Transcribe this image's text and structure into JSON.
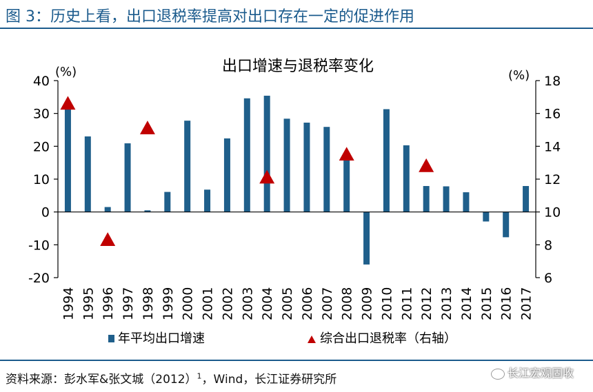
{
  "figure_title": "图 3：历史上看，出口退税率提高对出口存在一定的促进作用",
  "source_label": "资料来源：彭水军&张文城（2012）",
  "source_sup": "1",
  "source_rest": "，Wind，长江证券研究所",
  "watermark": "长江宏观固收",
  "colors": {
    "bar": "#1f5f8b",
    "marker": "#c00000",
    "title": "#1a5a8c"
  },
  "chart_data": {
    "type": "bar+scatter",
    "title": "出口增速与退税率变化",
    "left_unit": "(%)",
    "right_unit": "(%)",
    "categories": [
      "1994",
      "1995",
      "1996",
      "1997",
      "1998",
      "1999",
      "2000",
      "2001",
      "2002",
      "2003",
      "2004",
      "2005",
      "2006",
      "2007",
      "2008",
      "2009",
      "2010",
      "2011",
      "2012",
      "2013",
      "2014",
      "2015",
      "2016",
      "2017"
    ],
    "y_left_lim": [
      -20,
      40
    ],
    "y_left_ticks": [
      "40",
      "30",
      "20",
      "10",
      "0",
      "-10",
      "-20"
    ],
    "y_right_lim": [
      6,
      18
    ],
    "y_right_ticks": [
      "18",
      "16",
      "14",
      "12",
      "10",
      "8",
      "6"
    ],
    "series": [
      {
        "name": "年平均出口增速",
        "kind": "bar",
        "axis": "left",
        "values": [
          31.9,
          23.0,
          1.5,
          20.9,
          0.5,
          6.1,
          27.8,
          6.8,
          22.4,
          34.6,
          35.4,
          28.4,
          27.2,
          25.9,
          17.3,
          -16.0,
          31.3,
          20.3,
          7.9,
          7.8,
          6.0,
          -2.9,
          -7.7,
          7.9
        ]
      },
      {
        "name": "综合出口退税率（右轴）",
        "kind": "marker",
        "axis": "right",
        "points": [
          {
            "x": "1994",
            "y": 16.6
          },
          {
            "x": "1996",
            "y": 8.3
          },
          {
            "x": "1998",
            "y": 15.1
          },
          {
            "x": "2004",
            "y": 12.1
          },
          {
            "x": "2008",
            "y": 13.5
          },
          {
            "x": "2012",
            "y": 12.8
          }
        ]
      }
    ],
    "legend_position": "bottom"
  }
}
